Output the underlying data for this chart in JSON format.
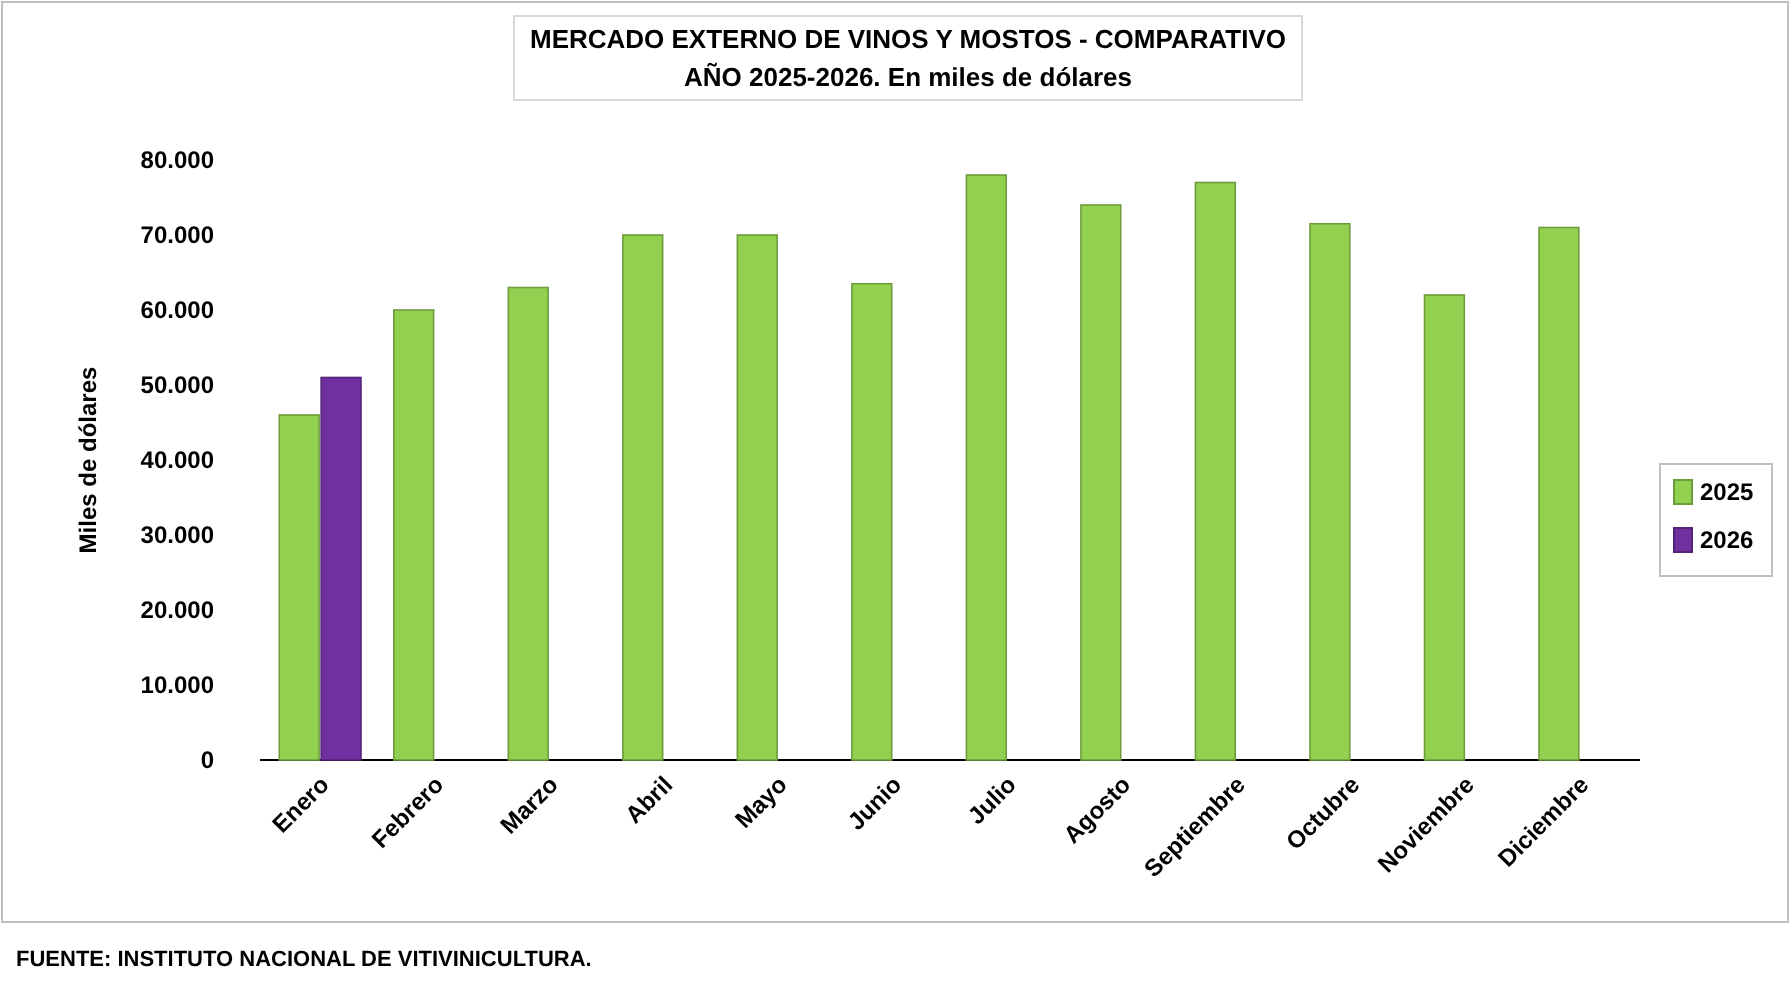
{
  "chart_data": {
    "type": "bar",
    "title": "MERCADO EXTERNO DE VINOS Y  MOSTOS - COMPARATIVO\nAÑO 2025-2026. En miles de dólares",
    "ylabel": "Miles de dólares",
    "categories": [
      "Enero",
      "Febrero",
      "Marzo",
      "Abril",
      "Mayo",
      "Junio",
      "Julio",
      "Agosto",
      "Septiembre",
      "Octubre",
      "Noviembre",
      "Diciembre"
    ],
    "series": [
      {
        "name": "2025",
        "color": "#92d050",
        "values": [
          46000,
          60000,
          63000,
          70000,
          70000,
          63500,
          78000,
          74000,
          77000,
          71500,
          62000,
          71000
        ]
      },
      {
        "name": "2026",
        "color": "#7030a0",
        "values": [
          51000,
          null,
          null,
          null,
          null,
          null,
          null,
          null,
          null,
          null,
          null,
          null
        ]
      }
    ],
    "ylim": [
      0,
      80000
    ],
    "yticks": [
      {
        "value": 0,
        "label": "0"
      },
      {
        "value": 10000,
        "label": "10.000"
      },
      {
        "value": 20000,
        "label": "20.000"
      },
      {
        "value": 30000,
        "label": "30.000"
      },
      {
        "value": 40000,
        "label": "40.000"
      },
      {
        "value": 50000,
        "label": "50.000"
      },
      {
        "value": 60000,
        "label": "60.000"
      },
      {
        "value": 70000,
        "label": "70.000"
      },
      {
        "value": 80000,
        "label": "80.000"
      }
    ],
    "legend": "right",
    "annotations": [
      "FUENTE: INSTITUTO NACIONAL DE VITIVINICULTURA."
    ]
  }
}
